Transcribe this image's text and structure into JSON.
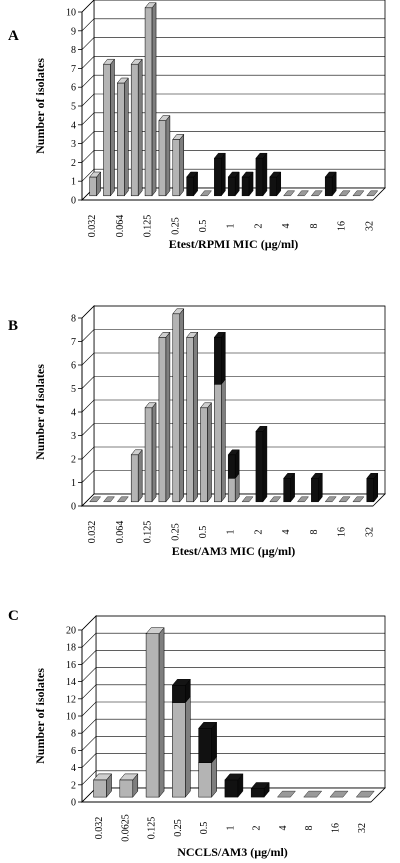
{
  "chart_data": [
    {
      "type": "bar",
      "panel": "A",
      "categories": [
        "0.032",
        "0.047",
        "0.064",
        "0.094",
        "0.125",
        "0.19",
        "0.25",
        "0.38",
        "0.5",
        "0.75",
        "1",
        "1.5",
        "2",
        "3",
        "4",
        "6",
        "8",
        "12",
        "16",
        "24",
        "32"
      ],
      "x_tick_labels": [
        "0.032",
        "0.064",
        "0.125",
        "0.25",
        "0.5",
        "1",
        "2",
        "4",
        "8",
        "16",
        "32"
      ],
      "series": [
        {
          "color": "#b4b4b4",
          "values": [
            1,
            7,
            6,
            7,
            10,
            4,
            3,
            0,
            0,
            0,
            0,
            0,
            0,
            0,
            0,
            0,
            0,
            0,
            0,
            0,
            0
          ]
        },
        {
          "color": "#111111",
          "values": [
            0,
            0,
            0,
            0,
            0,
            0,
            0,
            1,
            0,
            2,
            1,
            1,
            2,
            1,
            0,
            0,
            0,
            1,
            0,
            0,
            0
          ]
        }
      ],
      "stacked": true,
      "xlabel": "Etest/RPMI MIC (µg/ml)",
      "ylabel": "Number of isolates",
      "ylim": [
        0,
        10
      ],
      "yticks": [
        0,
        1,
        2,
        3,
        4,
        5,
        6,
        7,
        8,
        9,
        10
      ],
      "grid": true
    },
    {
      "type": "bar",
      "panel": "B",
      "categories": [
        "0.032",
        "0.047",
        "0.064",
        "0.094",
        "0.125",
        "0.19",
        "0.25",
        "0.38",
        "0.5",
        "0.75",
        "1",
        "1.5",
        "2",
        "3",
        "4",
        "6",
        "8",
        "12",
        "16",
        "24",
        "32"
      ],
      "x_tick_labels": [
        "0.032",
        "0.064",
        "0.125",
        "0.25",
        "0.5",
        "1",
        "2",
        "4",
        "8",
        "16",
        "32"
      ],
      "series": [
        {
          "color": "#b4b4b4",
          "values": [
            0,
            0,
            0,
            2,
            4,
            7,
            8,
            7,
            4,
            5,
            1,
            0,
            0,
            0,
            0,
            0,
            0,
            0,
            0,
            0,
            0
          ]
        },
        {
          "color": "#111111",
          "values": [
            0,
            0,
            0,
            0,
            0,
            0,
            0,
            0,
            0,
            2,
            1,
            0,
            3,
            0,
            1,
            0,
            1,
            0,
            0,
            0,
            1
          ]
        }
      ],
      "stacked": true,
      "xlabel": "Etest/AM3 MIC (µg/ml)",
      "ylabel": "Number of isolates",
      "ylim": [
        0,
        8
      ],
      "yticks": [
        0,
        1,
        2,
        3,
        4,
        5,
        6,
        7,
        8
      ],
      "grid": true
    },
    {
      "type": "bar",
      "panel": "C",
      "categories": [
        "0.032",
        "0.0625",
        "0.125",
        "0.25",
        "0.5",
        "1",
        "2",
        "4",
        "8",
        "16",
        "32"
      ],
      "x_tick_labels": [
        "0.032",
        "0.0625",
        "0.125",
        "0.25",
        "0.5",
        "1",
        "2",
        "4",
        "8",
        "16",
        "32"
      ],
      "series": [
        {
          "color": "#b4b4b4",
          "values": [
            2,
            2,
            19,
            11,
            4,
            0,
            0,
            0,
            0,
            0,
            0
          ]
        },
        {
          "color": "#111111",
          "values": [
            0,
            0,
            0,
            2,
            4,
            2,
            1,
            0,
            0,
            0,
            0
          ]
        }
      ],
      "stacked": true,
      "xlabel": "NCCLS/AM3 (µg/ml)",
      "ylabel": "Number of isolates",
      "ylim": [
        0,
        20
      ],
      "yticks": [
        0,
        2,
        4,
        6,
        8,
        10,
        12,
        14,
        16,
        18,
        20
      ],
      "grid": true
    }
  ]
}
